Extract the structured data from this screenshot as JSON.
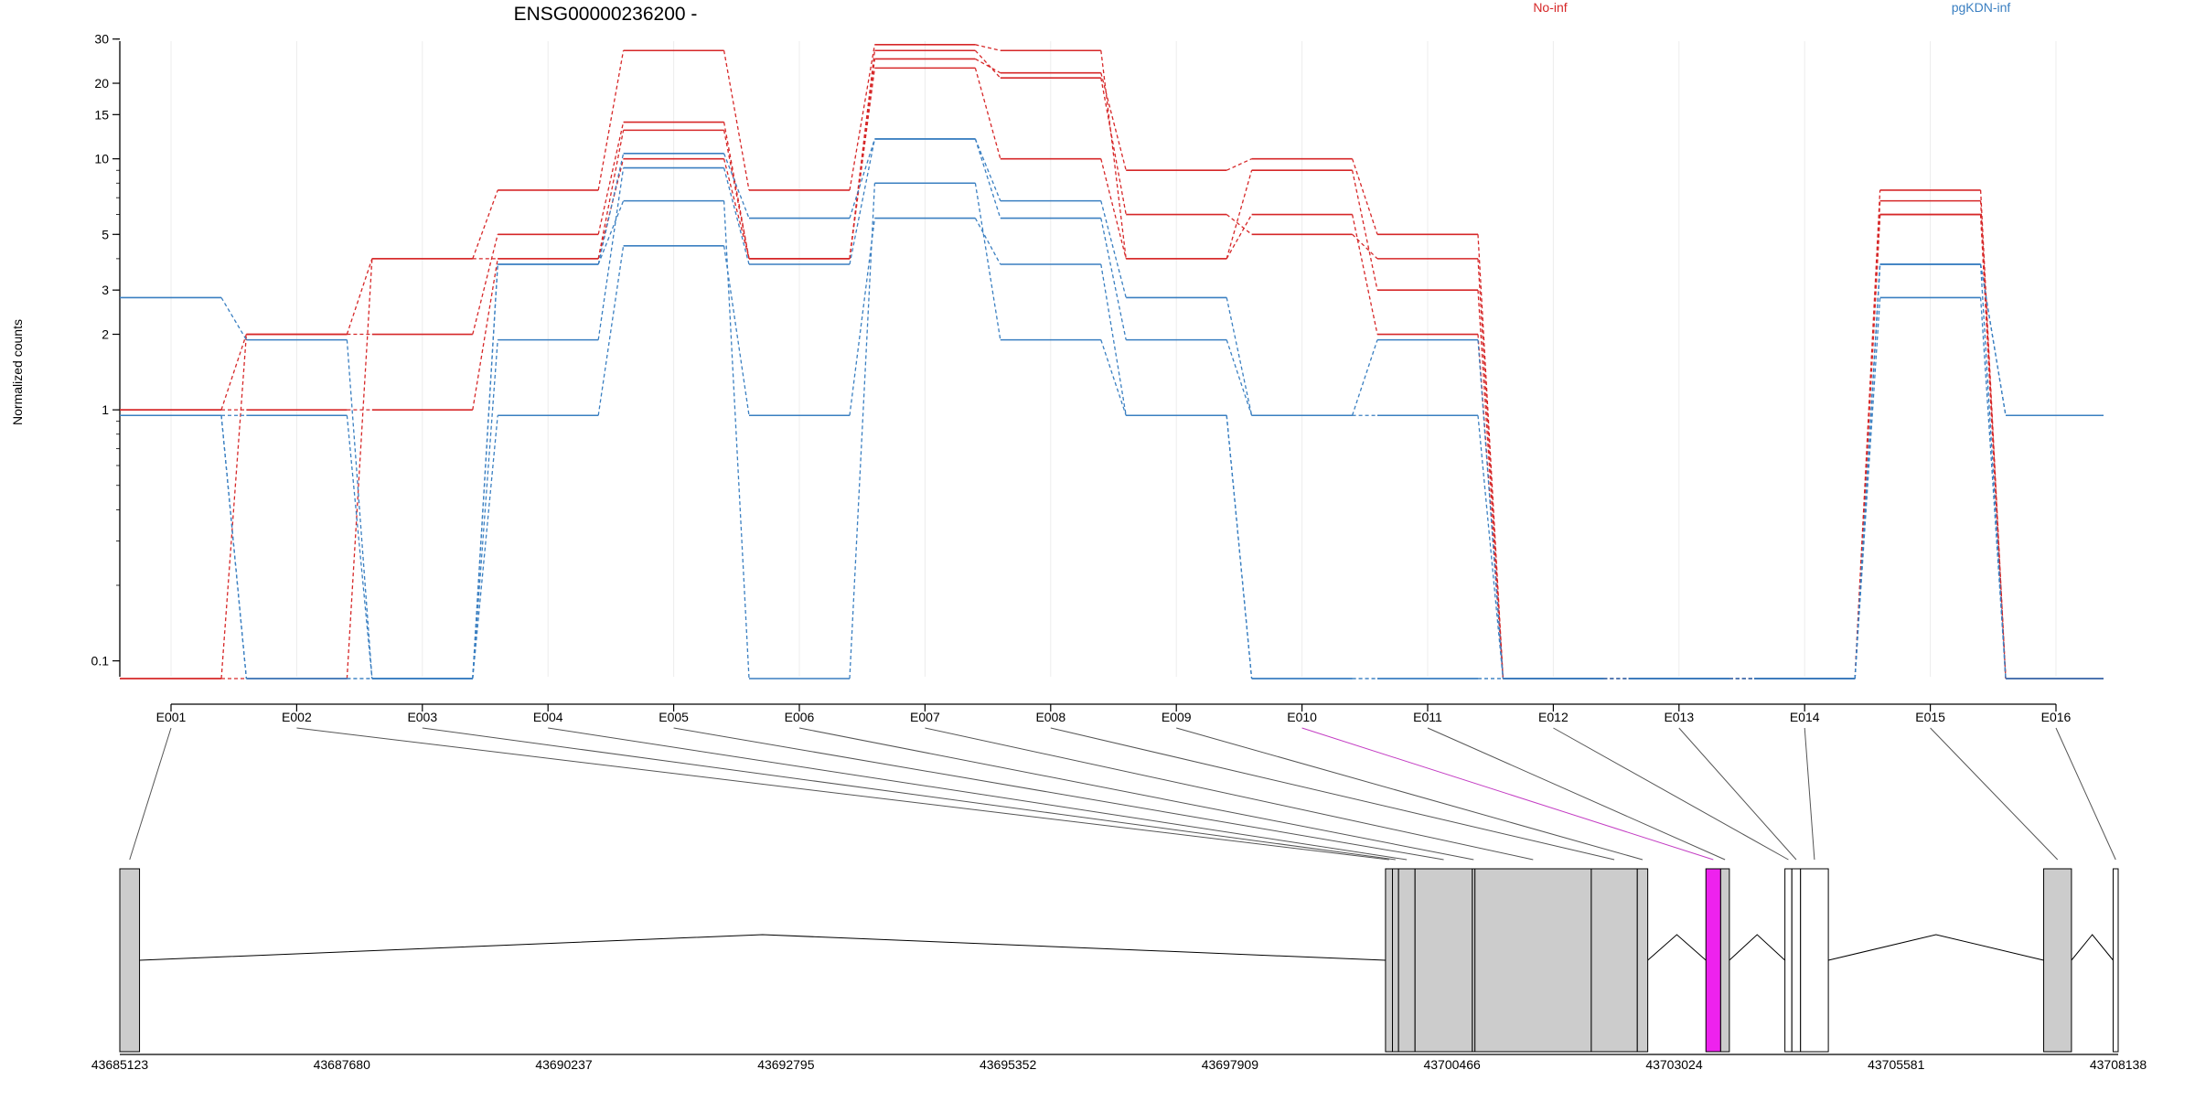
{
  "chart_data": {
    "type": "line",
    "title": "ENSG00000236200 -",
    "ylabel": "Normalized counts",
    "y_scale": "log",
    "ylim": [
      0.085,
      32
    ],
    "y_ticks": [
      0.1,
      1,
      2,
      3,
      5,
      10,
      15,
      20,
      30
    ],
    "categories": [
      "E001",
      "E002",
      "E003",
      "E004",
      "E005",
      "E006",
      "E007",
      "E008",
      "E009",
      "E010",
      "E011",
      "E012",
      "E013",
      "E014",
      "E015",
      "E016"
    ],
    "legend": [
      {
        "name": "No-inf",
        "color": "#d62728"
      },
      {
        "name": "pgKDN-inf",
        "color": "#3a7fc1"
      }
    ],
    "series": [
      {
        "group": "No-inf",
        "values": [
          0.085,
          2.0,
          4.0,
          7.5,
          27,
          7.5,
          28.5,
          27,
          4.0,
          9.0,
          3.0,
          0.085,
          0.085,
          0.085,
          7.5,
          0.085
        ]
      },
      {
        "group": "No-inf",
        "values": [
          1.0,
          2.0,
          2.0,
          5.0,
          14,
          4.0,
          25,
          22,
          9.0,
          10,
          5.0,
          0.085,
          0.085,
          0.085,
          6.8,
          0.085
        ]
      },
      {
        "group": "No-inf",
        "values": [
          1.0,
          1.0,
          1.0,
          4.0,
          13,
          4.0,
          27,
          21,
          6.0,
          5.0,
          4.0,
          0.085,
          0.085,
          0.085,
          6.0,
          0.085
        ]
      },
      {
        "group": "No-inf",
        "values": [
          0.085,
          0.085,
          4.0,
          4.0,
          10,
          4.0,
          23,
          10,
          4.0,
          6.0,
          2.0,
          0.085,
          0.085,
          0.085,
          6.0,
          0.085
        ]
      },
      {
        "group": "pgKDN-inf",
        "values": [
          2.8,
          1.9,
          0.085,
          3.8,
          10.5,
          5.8,
          12,
          6.8,
          2.8,
          0.95,
          1.9,
          0.085,
          0.085,
          0.085,
          3.8,
          0.95
        ]
      },
      {
        "group": "pgKDN-inf",
        "values": [
          0.95,
          0.95,
          0.085,
          1.9,
          9.2,
          3.8,
          12,
          5.8,
          1.9,
          0.95,
          0.95,
          0.085,
          0.085,
          0.085,
          3.8,
          0.95
        ]
      },
      {
        "group": "pgKDN-inf",
        "values": [
          0.95,
          0.085,
          0.085,
          0.95,
          4.5,
          0.95,
          5.8,
          3.8,
          0.95,
          0.085,
          0.085,
          0.085,
          0.085,
          0.085,
          2.8,
          0.085
        ]
      },
      {
        "group": "pgKDN-inf",
        "values": [
          0.95,
          0.085,
          0.085,
          3.8,
          6.8,
          0.085,
          8.0,
          1.9,
          0.95,
          0.085,
          0.085,
          0.085,
          0.085,
          0.085,
          3.8,
          0.085
        ]
      }
    ],
    "exon_coords": {
      "start": 43685123,
      "end": 43708138,
      "ticks": [
        43685123,
        43687680,
        43690237,
        43692795,
        43695352,
        43697909,
        43700466,
        43703024,
        43705581,
        43708138
      ],
      "exons": [
        {
          "id": "E001",
          "start": 43685123,
          "end": 43685350,
          "color": "#cccccc"
        },
        {
          "id": "E002",
          "start": 43699700,
          "end": 43699780,
          "color": "#cccccc"
        },
        {
          "id": "E003",
          "start": 43699780,
          "end": 43699850,
          "color": "#cccccc"
        },
        {
          "id": "E004",
          "start": 43699850,
          "end": 43700040,
          "color": "#cccccc"
        },
        {
          "id": "E005",
          "start": 43700040,
          "end": 43700700,
          "color": "#cccccc"
        },
        {
          "id": "E006",
          "start": 43700700,
          "end": 43700730,
          "color": "#cccccc"
        },
        {
          "id": "E007",
          "start": 43700730,
          "end": 43702070,
          "color": "#cccccc"
        },
        {
          "id": "E008",
          "start": 43702070,
          "end": 43702600,
          "color": "#cccccc"
        },
        {
          "id": "E009",
          "start": 43702600,
          "end": 43702720,
          "color": "#cccccc"
        },
        {
          "id": "E010",
          "start": 43703390,
          "end": 43703560,
          "color": "#ee22ee"
        },
        {
          "id": "E011",
          "start": 43703560,
          "end": 43703660,
          "color": "#cccccc"
        },
        {
          "id": "E012",
          "start": 43704300,
          "end": 43704380,
          "color": "#ffffff"
        },
        {
          "id": "E013",
          "start": 43704380,
          "end": 43704480,
          "color": "#ffffff"
        },
        {
          "id": "E014",
          "start": 43704480,
          "end": 43704800,
          "color": "#ffffff"
        },
        {
          "id": "E015",
          "start": 43707280,
          "end": 43707600,
          "color": "#cccccc"
        },
        {
          "id": "E016",
          "start": 43708080,
          "end": 43708138,
          "color": "#ffffff"
        }
      ],
      "highlight": "E010"
    }
  }
}
